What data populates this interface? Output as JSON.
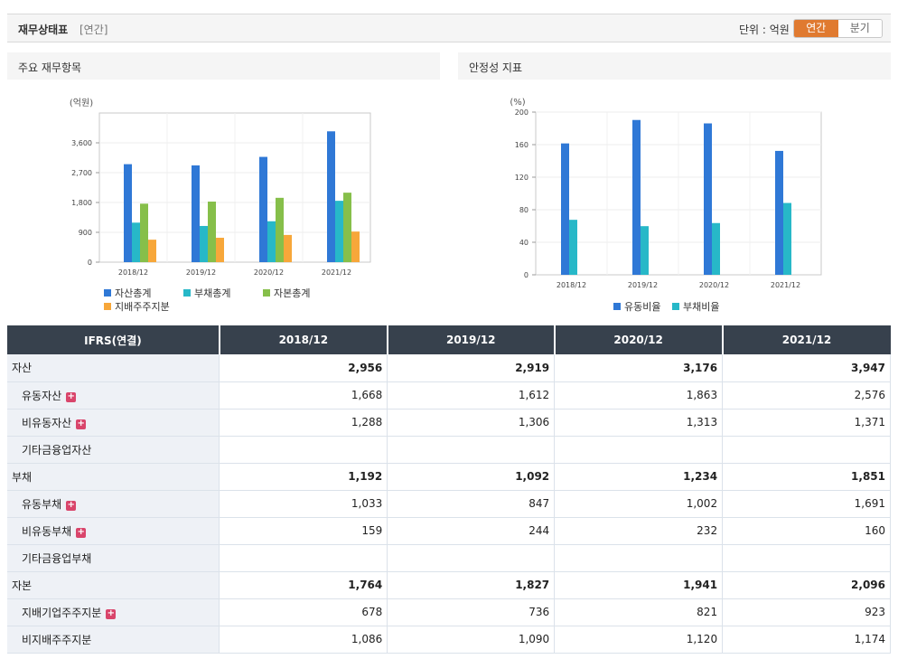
{
  "header": {
    "title": "재무상태표",
    "subtitle": "[연간]",
    "unit_label": "단위 : 억원",
    "toggle_annual": "연간",
    "toggle_quarter": "분기"
  },
  "colors": {
    "asset": "#2f78d6",
    "liability": "#27b8c8",
    "capital": "#86bf4a",
    "controlling": "#f7a73a",
    "toggle_active": "#e07a30",
    "table_header": "#37414d"
  },
  "chart_left_title": "주요 재무항목",
  "chart_right_title": "안정성 지표",
  "chart_data": [
    {
      "type": "bar",
      "title": "주요 재무항목",
      "ylabel": "(억원)",
      "categories": [
        "2018/12",
        "2019/12",
        "2020/12",
        "2021/12"
      ],
      "ylim": [
        0,
        4500
      ],
      "yticks": [
        "0",
        "900",
        "1,800",
        "2,700",
        "3,600"
      ],
      "series": [
        {
          "name": "자산총계",
          "values": [
            2956,
            2919,
            3176,
            3947
          ]
        },
        {
          "name": "부채총계",
          "values": [
            1192,
            1092,
            1234,
            1851
          ]
        },
        {
          "name": "자본총계",
          "values": [
            1764,
            1827,
            1941,
            2096
          ]
        },
        {
          "name": "지배주주지분",
          "values": [
            678,
            736,
            821,
            923
          ]
        }
      ]
    },
    {
      "type": "bar",
      "title": "안정성 지표",
      "ylabel": "(%)",
      "categories": [
        "2018/12",
        "2019/12",
        "2020/12",
        "2021/12"
      ],
      "ylim": [
        0,
        200
      ],
      "yticks": [
        "0",
        "40",
        "80",
        "120",
        "160",
        "200"
      ],
      "series": [
        {
          "name": "유동비율",
          "values": [
            161.5,
            190.3,
            186.1,
            152.3
          ]
        },
        {
          "name": "부채비율",
          "values": [
            67.6,
            59.8,
            63.6,
            88.3
          ]
        }
      ]
    }
  ],
  "table": {
    "head": [
      "IFRS(연결)",
      "2018/12",
      "2019/12",
      "2020/12",
      "2021/12"
    ],
    "rows": [
      {
        "label": "자산",
        "values": [
          "2,956",
          "2,919",
          "3,176",
          "3,947"
        ]
      },
      {
        "label": "유동자산",
        "values": [
          "1,668",
          "1,612",
          "1,863",
          "2,576"
        ]
      },
      {
        "label": "비유동자산",
        "values": [
          "1,288",
          "1,306",
          "1,313",
          "1,371"
        ]
      },
      {
        "label": "기타금융업자산",
        "values": [
          "",
          "",
          "",
          ""
        ]
      },
      {
        "label": "부채",
        "values": [
          "1,192",
          "1,092",
          "1,234",
          "1,851"
        ]
      },
      {
        "label": "유동부채",
        "values": [
          "1,033",
          "847",
          "1,002",
          "1,691"
        ]
      },
      {
        "label": "비유동부채",
        "values": [
          "159",
          "244",
          "232",
          "160"
        ]
      },
      {
        "label": "기타금융업부채",
        "values": [
          "",
          "",
          "",
          ""
        ]
      },
      {
        "label": "자본",
        "values": [
          "1,764",
          "1,827",
          "1,941",
          "2,096"
        ]
      },
      {
        "label": "지배기업주주지분",
        "values": [
          "678",
          "736",
          "821",
          "923"
        ]
      },
      {
        "label": "비지배주주지분",
        "values": [
          "1,086",
          "1,090",
          "1,120",
          "1,174"
        ]
      }
    ]
  }
}
